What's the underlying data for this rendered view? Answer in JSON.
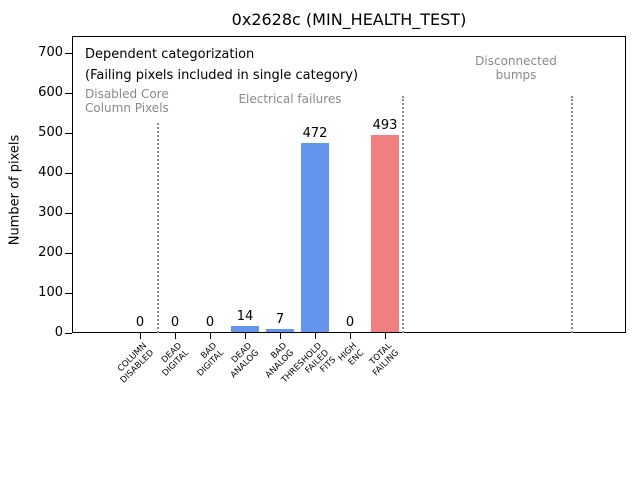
{
  "chart_data": {
    "type": "bar",
    "title": "0x2628c (MIN_HEALTH_TEST)",
    "ylabel": "Number of pixels",
    "xlabel": "",
    "categories": [
      "COLUMN\nDISABLED",
      "DEAD\nDIGITAL",
      "BAD\nDIGITAL",
      "DEAD\nANALOG",
      "BAD\nANALOG",
      "THRESHOLD\nFAILED\nFITS",
      "HIGH\nENC",
      "TOTAL\nFAILING"
    ],
    "values": [
      0,
      0,
      0,
      14,
      7,
      472,
      0,
      493
    ],
    "bar_colors": [
      "#6495ED",
      "#6495ED",
      "#6495ED",
      "#6495ED",
      "#6495ED",
      "#6495ED",
      "#6495ED",
      "#F08080"
    ],
    "yticks": [
      0,
      100,
      200,
      300,
      400,
      500,
      600,
      700
    ],
    "ylim": [
      0,
      742
    ],
    "grid": false,
    "legend": null,
    "value_labels_shown": true,
    "annotations": [
      {
        "id": "dependent-1",
        "text": "Dependent categorization",
        "color": "#000000"
      },
      {
        "id": "dependent-2",
        "text": "(Failing pixels included in single category)",
        "color": "#000000"
      },
      {
        "id": "disabled-core",
        "text": "Disabled Core\nColumn Pixels",
        "color": "#8a8a8a"
      },
      {
        "id": "electrical",
        "text": "Electrical failures",
        "color": "#8a8a8a"
      },
      {
        "id": "disconnected",
        "text": "Disconnected\nbumps",
        "color": "#8a8a8a"
      }
    ],
    "separators": [
      {
        "x_units": 0.5,
        "ymax_frac": 0.71,
        "style": "dotted",
        "color": "#8c8c8c"
      },
      {
        "x_units": 7.5,
        "ymax_frac": 0.8,
        "style": "dotted",
        "color": "#8c8c8c"
      },
      {
        "x_units": 12.35,
        "ymax_frac": 0.8,
        "style": "dotted",
        "color": "#8c8c8c"
      }
    ]
  }
}
